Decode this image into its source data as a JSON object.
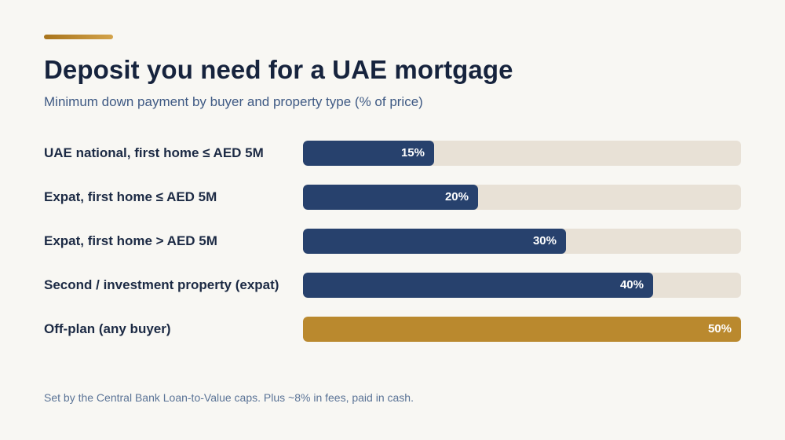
{
  "title": "Deposit you need for a UAE mortgage",
  "subtitle": "Minimum down payment by buyer and property type (% of price)",
  "footnote": "Set by the Central Bank Loan-to-Value caps. Plus ~8% in fees, paid in cash.",
  "colors": {
    "primary_bar": "#27416d",
    "highlight_bar": "#ba892e",
    "track": "#e8e1d6",
    "accent_rule": "#c0902f"
  },
  "chart_data": {
    "type": "bar",
    "orientation": "horizontal",
    "categories": [
      "UAE national, first home ≤ AED 5M",
      "Expat, first home ≤ AED 5M",
      "Expat, first home > AED 5M",
      "Second / investment property (expat)",
      "Off-plan (any buyer)"
    ],
    "values": [
      15,
      20,
      30,
      40,
      50
    ],
    "value_labels": [
      "15%",
      "20%",
      "30%",
      "40%",
      "50%"
    ],
    "highlight_index": 4,
    "xlim": [
      0,
      50
    ],
    "title": "Deposit you need for a UAE mortgage",
    "xlabel": "",
    "ylabel": "",
    "grid": false,
    "legend": "none"
  }
}
